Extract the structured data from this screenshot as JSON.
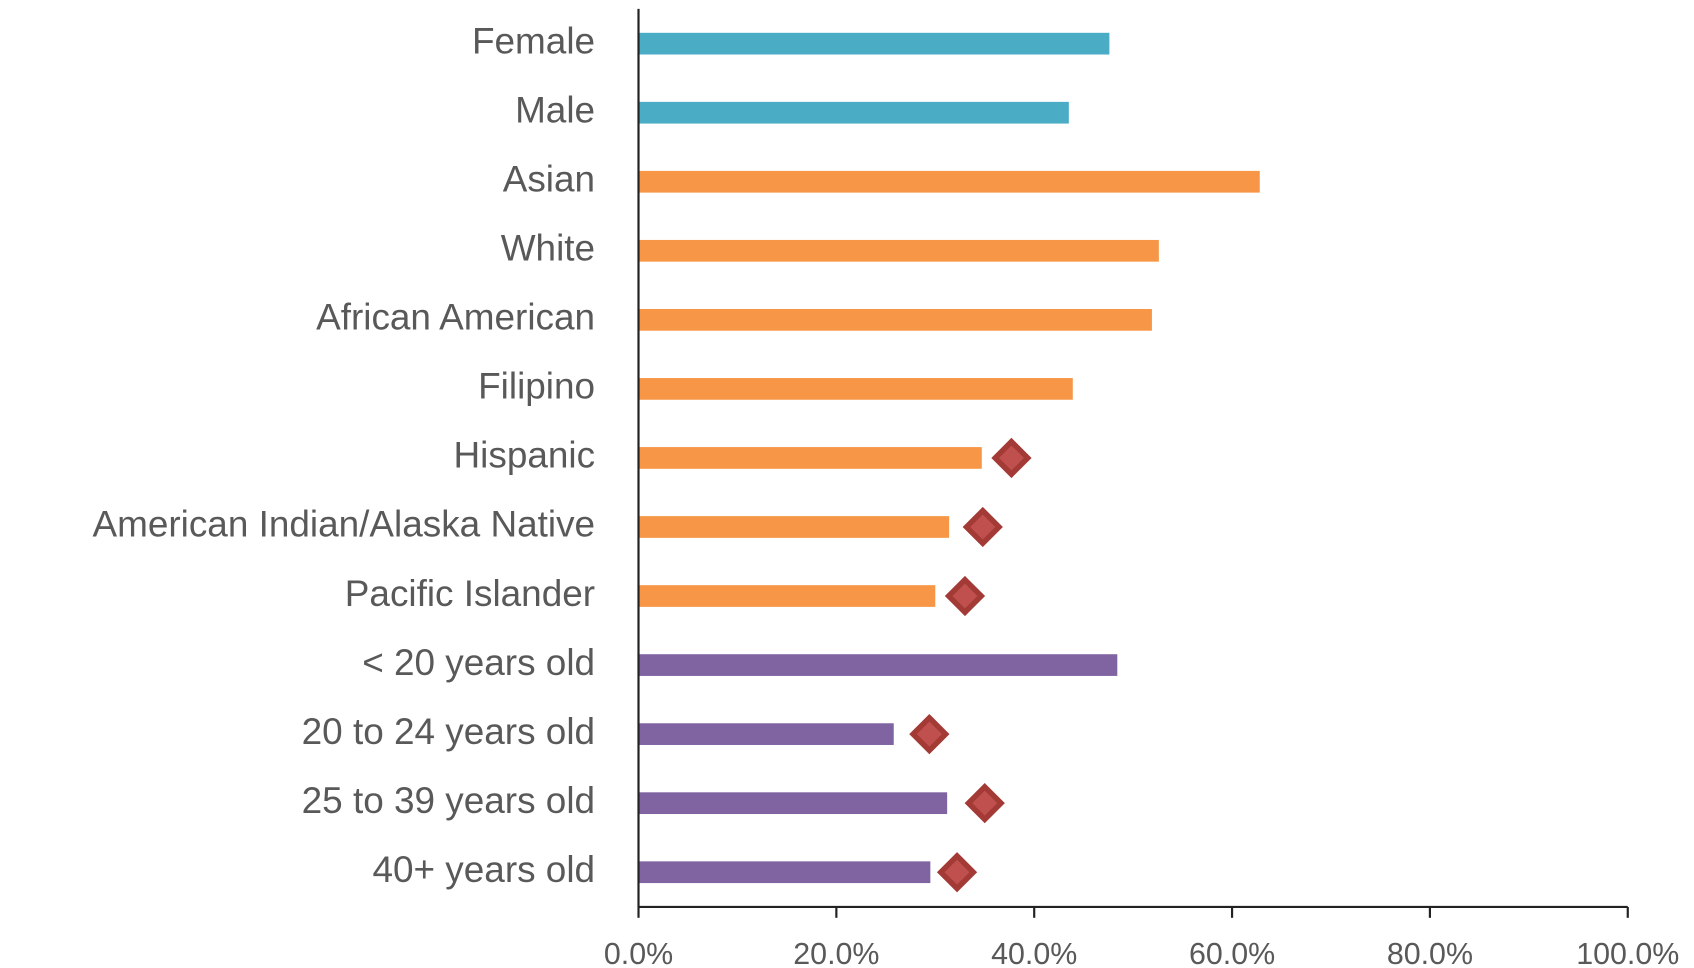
{
  "chart_data": {
    "type": "bar",
    "orientation": "horizontal",
    "categories": [
      "Female",
      "Male",
      "Asian",
      "White",
      "African American",
      "Filipino",
      "Hispanic",
      "American Indian/Alaska Native",
      "Pacific Islander",
      "< 20 years old",
      "20 to 24 years old",
      "25 to 39 years old",
      "40+ years old"
    ],
    "values": [
      47.6,
      43.5,
      62.8,
      52.6,
      51.9,
      43.9,
      34.7,
      31.4,
      30.0,
      48.4,
      25.8,
      31.2,
      29.5
    ],
    "colors": [
      "#4bacc6",
      "#4bacc6",
      "#f79646",
      "#f79646",
      "#f79646",
      "#f79646",
      "#f79646",
      "#f79646",
      "#f79646",
      "#8064a2",
      "#8064a2",
      "#8064a2",
      "#8064a2"
    ],
    "marker_values": [
      null,
      null,
      null,
      null,
      null,
      null,
      37.7,
      34.8,
      33.0,
      null,
      29.4,
      35.0,
      32.2
    ],
    "marker_color": "#a33a36",
    "xlim": [
      0,
      100
    ],
    "xticks": [
      {
        "value": 0,
        "label": "0.0%"
      },
      {
        "value": 20,
        "label": "20.0%"
      },
      {
        "value": 40,
        "label": "40.0%"
      },
      {
        "value": 60,
        "label": "60.0%"
      },
      {
        "value": 80,
        "label": "80.0%"
      },
      {
        "value": 100,
        "label": "100.0%"
      }
    ]
  }
}
